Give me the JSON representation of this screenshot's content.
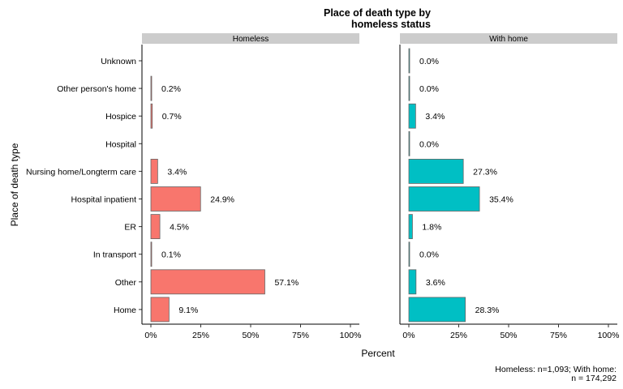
{
  "chart_data": {
    "type": "bar",
    "orientation": "horizontal",
    "title_line1": "Place of death type by",
    "title_line2": "homeless status",
    "xlabel": "Percent",
    "ylabel": "Place of death type",
    "caption_line1": "Homeless: n=1,093; With home:",
    "caption_line2": "n = 174,292",
    "categories": [
      "Unknown",
      "Other person's home",
      "Hospice",
      "Hospital",
      "Nursing home/Longterm care",
      "Hospital inpatient",
      "ER",
      "In transport",
      "Other",
      "Home"
    ],
    "xlim": [
      0,
      100
    ],
    "x_ticks": [
      "0%",
      "25%",
      "50%",
      "75%",
      "100%"
    ],
    "facets": [
      {
        "name": "Homeless",
        "color": "#F8766D",
        "values": [
          null,
          0.2,
          0.7,
          null,
          3.4,
          24.9,
          4.5,
          0.1,
          57.1,
          9.1
        ],
        "labels": [
          "",
          "0.2%",
          "0.7%",
          "",
          "3.4%",
          "24.9%",
          "4.5%",
          "0.1%",
          "57.1%",
          "9.1%"
        ]
      },
      {
        "name": "With home",
        "color": "#00BFC4",
        "values": [
          0.0,
          0.0,
          3.4,
          0.0,
          27.3,
          35.4,
          1.8,
          0.0,
          3.6,
          28.3
        ],
        "labels": [
          "0.0%",
          "0.0%",
          "3.4%",
          "0.0%",
          "27.3%",
          "35.4%",
          "1.8%",
          "0.0%",
          "3.6%",
          "28.3%"
        ]
      }
    ],
    "legend": "none",
    "grid": false
  }
}
